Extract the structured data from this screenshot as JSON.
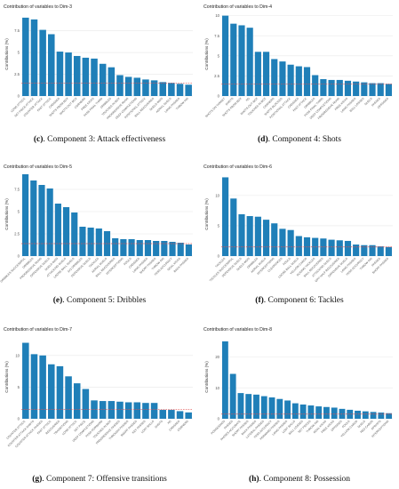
{
  "colors": {
    "bar": "#1f7fb8",
    "ref_line": "#e05050",
    "grid": "#e8e8e8",
    "axis_text": "#555555"
  },
  "chart_data": [
    {
      "type": "bar",
      "title": "Contribution of variables to Dim-3",
      "ylabel": "Contributions (%)",
      "yticks": [
        0,
        2.5,
        5.0,
        7.5
      ],
      "ylim": [
        0,
        9.6
      ],
      "reference_line": 1.5,
      "categories": [
        "LONG ATTACK",
        "SET PIECE ATTACK",
        "COUNTER ATTACK",
        "FAST ATTACK",
        "CROSSES",
        "SHOTS FROM BOX",
        "SHOTS OUT BOX",
        "CORNERS",
        "FREE KICKS",
        "PASS FINAL THIRD",
        "DRIBBLES",
        "TOUCHES IN BOX",
        "PROGRESSIVE RUNS",
        "DEEP COMPLETIONS",
        "POSITIONAL ATTACK",
        "BALL RECOVERIES",
        "DUELS WON",
        "AERIAL DUELS",
        "LONG PASSES",
        "THROW INS"
      ],
      "values": [
        9.0,
        8.8,
        7.6,
        7.1,
        5.1,
        5.0,
        4.6,
        4.4,
        4.3,
        3.7,
        3.3,
        2.4,
        2.2,
        2.1,
        1.9,
        1.8,
        1.6,
        1.5,
        1.4,
        1.3
      ],
      "caption_letter": "(c)",
      "caption_text": ". Component 3: Attack effectiveness"
    },
    {
      "type": "bar",
      "title": "Contribution of variables to Dim-4",
      "ylabel": "Contributions (%)",
      "yticks": [
        0,
        2.5,
        5.0,
        7.5,
        10.0
      ],
      "ylim": [
        0,
        10.4
      ],
      "reference_line": 1.5,
      "categories": [
        "SHOTS ON TARGET",
        "SHOTS",
        "SHOTS FROM BOX",
        "XG",
        "SHOTS OUT BOX",
        "TOUCHES IN BOX",
        "CORNERS",
        "SHOTS BLOCKED",
        "POSITIONAL ATTACK",
        "CROSSES",
        "FAST ATTACK",
        "DRIBBLES",
        "PASS FINAL THIRD",
        "DEEP COMPLETIONS",
        "PROGRESSIVE RUNS",
        "FREE KICKS",
        "LONG PASSES",
        "BALL LOSSES",
        "DUELS",
        "PASSES",
        "OFFSIDES"
      ],
      "values": [
        10.0,
        9.0,
        8.8,
        8.5,
        5.5,
        5.5,
        4.6,
        4.3,
        3.9,
        3.7,
        3.6,
        2.6,
        2.1,
        2.0,
        2.0,
        1.9,
        1.8,
        1.7,
        1.6,
        1.6,
        1.5
      ],
      "caption_letter": "(d)",
      "caption_text": ". Component 4: Shots"
    },
    {
      "type": "bar",
      "title": "Contribution of variables to Dim-5",
      "ylabel": "Contributions (%)",
      "yticks": [
        0,
        2.5,
        5.0,
        7.5
      ],
      "ylim": [
        0,
        9.4
      ],
      "reference_line": 1.4,
      "categories": [
        "DRIBBLES SUCCESSFUL",
        "DRIBBLES",
        "PROGRESSIVE RUNS",
        "OFFENSIVE DUELS",
        "DUELS WON",
        "ATTACKING DUELS",
        "LOOSE BALL DUELS",
        "1V1 DRIBBLES",
        "DEFENSIVE DUELS",
        "TACKLES",
        "AERIAL DUELS",
        "BALL RECOVERIES",
        "INTERCEPTIONS",
        "FOULS",
        "CROSSES",
        "LONG PASSES",
        "SHORT PASSES",
        "THROW INS",
        "PASS ACCURACY",
        "GOAL KICKS",
        "BACK PASSES"
      ],
      "values": [
        9.2,
        8.5,
        8.0,
        7.6,
        5.9,
        5.5,
        4.9,
        3.3,
        3.2,
        3.1,
        2.8,
        2.0,
        1.9,
        1.9,
        1.8,
        1.8,
        1.7,
        1.7,
        1.6,
        1.5,
        1.3
      ],
      "caption_letter": "(e)",
      "caption_text": ". Component 5: Dribbles"
    },
    {
      "type": "bar",
      "title": "Contribution of variables to Dim-6",
      "ylabel": "Contributions (%)",
      "yticks": [
        0,
        5,
        10
      ],
      "ylim": [
        0,
        13.8
      ],
      "reference_line": 1.5,
      "categories": [
        "TACKLES",
        "TACKLES SUCCESSFUL",
        "DEFENSIVE DUELS",
        "DUELS WON",
        "DRIBBLES",
        "AERIAL DUELS",
        "INTERCEPTIONS",
        "CLEARANCES",
        "FOULS",
        "LOOSE BALL DUELS",
        "YELLOW CARDS",
        "SLIDING TACKLES",
        "BALL RECOVERIES",
        "ATTACKING DUELS",
        "OPP HALF RECOVERIES",
        "OFFENSIVE DUELS",
        "LONG PASSES",
        "PASS ACCURACY",
        "THROW INS",
        "PASSES",
        "SHORT PASSES"
      ],
      "values": [
        13.0,
        9.5,
        6.9,
        6.6,
        6.5,
        6.0,
        5.4,
        4.5,
        4.3,
        3.3,
        3.1,
        3.0,
        2.9,
        2.7,
        2.6,
        2.5,
        1.9,
        1.8,
        1.8,
        1.6,
        1.5
      ],
      "caption_letter": "(f)",
      "caption_text": ". Component 6: Tackles"
    },
    {
      "type": "bar",
      "title": "Contribution of variables to Dim-7",
      "ylabel": "Contributions (%)",
      "yticks": [
        0,
        5,
        10
      ],
      "ylim": [
        0,
        13.2
      ],
      "reference_line": 1.5,
      "categories": [
        "COUNTER ATTACK",
        "COUNTER ATTACK SHOTS",
        "COUNTER ATTACK PASSES",
        "FAST ATTACK",
        "RECOVERIES",
        "TRANSITIONS",
        "LONG ATTACK",
        "SET PIECE",
        "DEEP COMPLETIONS",
        "PASS FORWARD",
        "TOUCHES IN BOX",
        "PROGRESSIVE PASSES",
        "THROUGH PASSES",
        "SMART PASSES",
        "KEY PASSES",
        "LOST BALLS",
        "SHOTS",
        "XG",
        "CROSSES",
        "CORNERS"
      ],
      "values": [
        12.0,
        10.2,
        10.0,
        8.6,
        8.3,
        6.7,
        5.6,
        4.7,
        2.9,
        2.8,
        2.8,
        2.7,
        2.6,
        2.6,
        2.5,
        2.5,
        1.4,
        1.4,
        1.2,
        1.0
      ],
      "caption_letter": "(g)",
      "caption_text": ". Component 7: Offensive transitions"
    },
    {
      "type": "bar",
      "title": "Contribution of variables to Dim-8",
      "ylabel": "Contributions (%)",
      "yticks": [
        0,
        10,
        20
      ],
      "ylim": [
        0,
        27
      ],
      "reference_line": 1.5,
      "categories": [
        "POSSESSION",
        "PASSES",
        "PASSES ACCURATE",
        "SHORT PASSES",
        "BACK PASSES",
        "LATERAL PASSES",
        "PASS ACCURACY",
        "FORWARD PASSES",
        "LONG PASSES",
        "LOST BALLS",
        "BALL LOSSES",
        "SET PIECES",
        "THROW INS",
        "GOAL KICKS",
        "FREE KICKS",
        "OFFSIDES",
        "FOULS",
        "YELLOW CARDS",
        "DUELS",
        "RED CARDS",
        "SPRINTS",
        "INTERCEPTIONS"
      ],
      "values": [
        25.0,
        14.5,
        8.3,
        8.0,
        7.8,
        7.3,
        6.9,
        6.4,
        5.9,
        5.0,
        4.6,
        4.3,
        4.0,
        3.8,
        3.6,
        3.2,
        2.9,
        2.6,
        2.4,
        2.2,
        2.0,
        1.8
      ],
      "caption_letter": "(h)",
      "caption_text": ". Component 8: Possession"
    }
  ]
}
